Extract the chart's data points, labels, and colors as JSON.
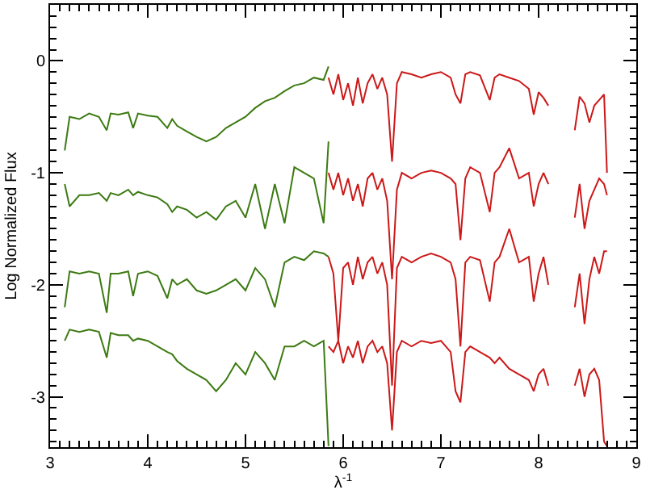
{
  "chart_data": {
    "type": "line",
    "xlabel": "λ$^{-1}$",
    "ylabel": "Log Normalized Flux",
    "xlim": [
      3,
      9
    ],
    "xticks": [
      3,
      4,
      5,
      6,
      7,
      8,
      9
    ],
    "ylim": [
      -3.45,
      0.5
    ],
    "yticks": [
      0,
      -1,
      -2,
      -3
    ],
    "marker": "none",
    "line_style": "solid",
    "series": [
      {
        "color": "#3c7a12",
        "x": [
          3.15,
          3.2,
          3.3,
          3.4,
          3.5,
          3.58,
          3.62,
          3.7,
          3.8,
          3.85,
          3.9,
          4.0,
          4.1,
          4.2,
          4.25,
          4.3,
          4.4,
          4.5,
          4.6,
          4.7,
          4.8,
          4.9,
          5.0,
          5.1,
          5.2,
          5.3,
          5.4,
          5.5,
          5.6,
          5.7,
          5.8,
          5.85
        ],
        "values": [
          -0.8,
          -0.5,
          -0.52,
          -0.47,
          -0.5,
          -0.62,
          -0.47,
          -0.48,
          -0.46,
          -0.6,
          -0.47,
          -0.49,
          -0.5,
          -0.6,
          -0.52,
          -0.58,
          -0.63,
          -0.68,
          -0.72,
          -0.68,
          -0.6,
          -0.55,
          -0.5,
          -0.42,
          -0.36,
          -0.33,
          -0.27,
          -0.22,
          -0.2,
          -0.15,
          -0.17,
          -0.05
        ]
      },
      {
        "color": "#cc1818",
        "x": [
          5.85,
          5.9,
          5.95,
          6.0,
          6.05,
          6.1,
          6.15,
          6.2,
          6.25,
          6.3,
          6.35,
          6.4,
          6.45,
          6.5,
          6.55,
          6.6,
          6.7,
          6.8,
          6.9,
          7.0,
          7.1,
          7.15,
          7.2,
          7.25,
          7.3,
          7.4,
          7.5,
          7.55,
          7.6,
          7.7,
          7.8,
          7.9,
          7.95,
          8.0,
          8.05,
          8.1,
          8.2,
          8.37,
          8.42,
          8.47,
          8.52,
          8.57,
          8.62,
          8.67,
          8.7
        ],
        "values": [
          -0.15,
          -0.3,
          -0.12,
          -0.35,
          -0.2,
          -0.4,
          -0.15,
          -0.38,
          -0.2,
          -0.12,
          -0.25,
          -0.15,
          -0.3,
          -0.9,
          -0.2,
          -0.1,
          -0.12,
          -0.15,
          -0.12,
          -0.1,
          -0.15,
          -0.3,
          -0.38,
          -0.12,
          -0.1,
          -0.13,
          -0.35,
          -0.15,
          -0.12,
          -0.15,
          -0.18,
          -0.25,
          -0.48,
          -0.28,
          -0.33,
          -0.4,
          null,
          -0.62,
          -0.32,
          -0.38,
          -0.55,
          -0.4,
          -0.35,
          -0.3,
          -1.0
        ]
      },
      {
        "color": "#3c7a12",
        "x": [
          3.15,
          3.2,
          3.3,
          3.4,
          3.5,
          3.58,
          3.62,
          3.7,
          3.8,
          3.85,
          3.9,
          4.0,
          4.1,
          4.2,
          4.25,
          4.3,
          4.4,
          4.5,
          4.6,
          4.7,
          4.8,
          4.9,
          5.0,
          5.1,
          5.2,
          5.3,
          5.4,
          5.5,
          5.6,
          5.7,
          5.8,
          5.85
        ],
        "values": [
          -1.1,
          -1.3,
          -1.2,
          -1.2,
          -1.18,
          -1.25,
          -1.18,
          -1.2,
          -1.15,
          -1.2,
          -1.17,
          -1.2,
          -1.22,
          -1.28,
          -1.35,
          -1.3,
          -1.33,
          -1.4,
          -1.35,
          -1.42,
          -1.3,
          -1.25,
          -1.4,
          -1.1,
          -1.5,
          -1.1,
          -1.45,
          -0.95,
          -1.0,
          -1.05,
          -1.45,
          -0.72
        ]
      },
      {
        "color": "#cc1818",
        "x": [
          5.85,
          5.9,
          5.95,
          6.0,
          6.05,
          6.1,
          6.15,
          6.2,
          6.25,
          6.3,
          6.35,
          6.4,
          6.45,
          6.5,
          6.55,
          6.6,
          6.7,
          6.8,
          6.9,
          7.0,
          7.1,
          7.15,
          7.2,
          7.25,
          7.3,
          7.4,
          7.5,
          7.55,
          7.6,
          7.7,
          7.8,
          7.9,
          7.95,
          8.0,
          8.05,
          8.1,
          8.2,
          8.37,
          8.42,
          8.47,
          8.52,
          8.57,
          8.62,
          8.67,
          8.7
        ],
        "values": [
          -1.0,
          -1.15,
          -1.0,
          -1.2,
          -1.05,
          -1.25,
          -1.1,
          -1.3,
          -1.05,
          -1.0,
          -1.15,
          -1.05,
          -1.25,
          -1.95,
          -1.15,
          -1.0,
          -1.05,
          -1.0,
          -0.98,
          -1.0,
          -1.05,
          -1.1,
          -1.6,
          -1.05,
          -0.95,
          -1.0,
          -1.35,
          -1.0,
          -0.95,
          -0.78,
          -1.05,
          -1.0,
          -1.3,
          -1.1,
          -1.0,
          -1.1,
          null,
          -1.4,
          -1.1,
          -1.5,
          -1.25,
          -1.15,
          -1.05,
          -1.1,
          -1.2
        ]
      },
      {
        "color": "#3c7a12",
        "x": [
          3.15,
          3.2,
          3.3,
          3.4,
          3.5,
          3.58,
          3.62,
          3.7,
          3.8,
          3.85,
          3.9,
          4.0,
          4.1,
          4.2,
          4.25,
          4.3,
          4.4,
          4.5,
          4.6,
          4.7,
          4.8,
          4.9,
          5.0,
          5.1,
          5.2,
          5.3,
          5.4,
          5.5,
          5.6,
          5.7,
          5.8,
          5.85
        ],
        "values": [
          -2.2,
          -1.88,
          -1.9,
          -1.88,
          -1.9,
          -2.25,
          -1.9,
          -1.9,
          -1.88,
          -2.1,
          -1.9,
          -1.88,
          -1.92,
          -2.12,
          -1.95,
          -2.0,
          -1.95,
          -2.05,
          -2.08,
          -2.05,
          -2.0,
          -1.95,
          -2.05,
          -1.85,
          -1.95,
          -2.2,
          -1.8,
          -1.75,
          -1.78,
          -1.7,
          -1.72,
          -1.75
        ]
      },
      {
        "color": "#cc1818",
        "x": [
          5.85,
          5.9,
          5.95,
          6.0,
          6.05,
          6.1,
          6.15,
          6.2,
          6.25,
          6.3,
          6.35,
          6.4,
          6.45,
          6.5,
          6.55,
          6.6,
          6.7,
          6.8,
          6.9,
          7.0,
          7.1,
          7.15,
          7.2,
          7.25,
          7.3,
          7.4,
          7.5,
          7.55,
          7.6,
          7.7,
          7.8,
          7.9,
          7.95,
          8.0,
          8.05,
          8.1,
          8.2,
          8.37,
          8.42,
          8.47,
          8.52,
          8.57,
          8.62,
          8.67,
          8.7
        ],
        "values": [
          -1.75,
          -1.9,
          -2.5,
          -1.85,
          -1.8,
          -2.0,
          -1.75,
          -1.95,
          -1.8,
          -1.75,
          -1.9,
          -1.8,
          -2.0,
          -2.9,
          -1.85,
          -1.75,
          -1.8,
          -1.75,
          -1.72,
          -1.75,
          -1.8,
          -1.95,
          -2.55,
          -1.8,
          -1.75,
          -1.78,
          -2.15,
          -1.8,
          -1.75,
          -1.5,
          -1.8,
          -1.75,
          -2.15,
          -1.9,
          -1.75,
          -2.0,
          null,
          -2.2,
          -1.9,
          -2.35,
          -1.95,
          -1.75,
          -1.9,
          -1.7,
          -1.7
        ]
      },
      {
        "color": "#3c7a12",
        "x": [
          3.15,
          3.2,
          3.3,
          3.4,
          3.5,
          3.58,
          3.62,
          3.7,
          3.8,
          3.85,
          3.9,
          4.0,
          4.1,
          4.2,
          4.25,
          4.3,
          4.4,
          4.5,
          4.6,
          4.7,
          4.8,
          4.9,
          5.0,
          5.1,
          5.2,
          5.3,
          5.4,
          5.5,
          5.6,
          5.7,
          5.8,
          5.85
        ],
        "values": [
          -2.5,
          -2.4,
          -2.42,
          -2.4,
          -2.42,
          -2.65,
          -2.43,
          -2.45,
          -2.45,
          -2.5,
          -2.48,
          -2.5,
          -2.55,
          -2.6,
          -2.62,
          -2.68,
          -2.75,
          -2.8,
          -2.85,
          -2.95,
          -2.85,
          -2.7,
          -2.8,
          -2.6,
          -2.7,
          -2.85,
          -2.55,
          -2.55,
          -2.5,
          -2.55,
          -2.5,
          -3.44
        ]
      },
      {
        "color": "#cc1818",
        "x": [
          5.85,
          5.9,
          5.95,
          6.0,
          6.05,
          6.1,
          6.15,
          6.2,
          6.25,
          6.3,
          6.35,
          6.4,
          6.45,
          6.5,
          6.55,
          6.6,
          6.7,
          6.8,
          6.9,
          7.0,
          7.1,
          7.15,
          7.2,
          7.25,
          7.3,
          7.4,
          7.5,
          7.55,
          7.6,
          7.7,
          7.8,
          7.9,
          7.95,
          8.0,
          8.05,
          8.1,
          8.2,
          8.37,
          8.42,
          8.47,
          8.52,
          8.57,
          8.62,
          8.67,
          8.7
        ],
        "values": [
          -2.55,
          -2.6,
          -2.5,
          -2.7,
          -2.55,
          -2.65,
          -2.5,
          -2.7,
          -2.55,
          -2.5,
          -2.6,
          -2.55,
          -2.7,
          -3.3,
          -2.6,
          -2.5,
          -2.55,
          -2.5,
          -2.52,
          -2.5,
          -2.6,
          -2.95,
          -3.05,
          -2.6,
          -2.55,
          -2.6,
          -2.65,
          -2.7,
          -2.65,
          -2.75,
          -2.8,
          -2.85,
          -2.95,
          -2.8,
          -2.75,
          -2.9,
          null,
          -2.9,
          -2.75,
          -3.0,
          -2.8,
          -2.75,
          -2.85,
          -3.4,
          -3.44
        ]
      }
    ]
  }
}
